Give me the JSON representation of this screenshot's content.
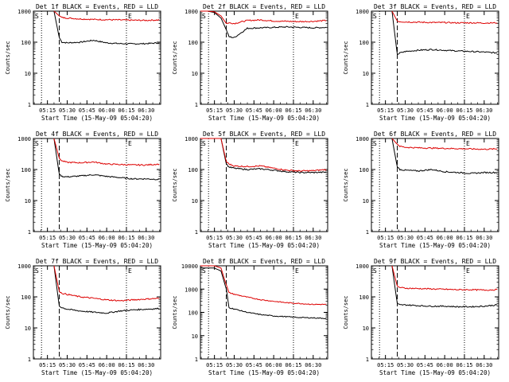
{
  "colors": {
    "events": "#000000",
    "lld": "#dd0000",
    "background": "#ffffff",
    "axes": "#000000"
  },
  "figure": {
    "ylabel": "Counts/sec",
    "xlabel": "Start Time (15-May-09 05:04:20)",
    "title_suffix": "BLACK = Events, RED = LLD",
    "y_scale": "log",
    "y_range": [
      1,
      1000
    ],
    "y_ticks": [
      {
        "value": 1,
        "label": "1"
      },
      {
        "value": 10,
        "label": "10"
      },
      {
        "value": 100,
        "label": "100"
      },
      {
        "value": 1000,
        "label": "1000"
      }
    ],
    "x_range": [
      "05:04:20",
      "06:41:00"
    ],
    "x_ticks": [
      "05:15",
      "05:30",
      "05:45",
      "06:00",
      "06:15",
      "06:30"
    ],
    "markers": {
      "start": "05:10:30",
      "dashed": "05:24:00",
      "end": "06:15:00"
    },
    "corner_labels": {
      "left": "S",
      "right": "E"
    }
  },
  "chart_data": [
    {
      "type": "line",
      "title": "Det 1f BLACK = Events, RED = LLD",
      "ylim": [
        1,
        1000
      ],
      "series": [
        {
          "name": "Events",
          "color": "#000000",
          "x": [
            "05:20",
            "05:24",
            "05:26",
            "05:30",
            "05:40",
            "05:50",
            "06:00",
            "06:10",
            "06:20",
            "06:30",
            "06:40"
          ],
          "values": [
            1000,
            140,
            100,
            95,
            100,
            115,
            95,
            90,
            88,
            90,
            95
          ]
        },
        {
          "name": "LLD",
          "color": "#dd0000",
          "x": [
            "05:20",
            "05:24",
            "05:26",
            "05:30",
            "05:40",
            "05:50",
            "06:00",
            "06:10",
            "06:20",
            "06:30",
            "06:40"
          ],
          "values": [
            1000,
            700,
            620,
            600,
            560,
            540,
            530,
            520,
            510,
            505,
            520
          ]
        }
      ]
    },
    {
      "type": "line",
      "title": "Det 2f BLACK = Events, RED = LLD",
      "ylim": [
        1,
        1000
      ],
      "series": [
        {
          "name": "Events",
          "color": "#000000",
          "x": [
            "05:04:20",
            "05:10",
            "05:15",
            "05:20",
            "05:24",
            "05:26",
            "05:30",
            "05:40",
            "05:50",
            "06:00",
            "06:10",
            "06:20",
            "06:30",
            "06:40"
          ],
          "values": [
            1000,
            1000,
            900,
            600,
            250,
            150,
            140,
            280,
            290,
            300,
            310,
            300,
            290,
            300
          ]
        },
        {
          "name": "LLD",
          "color": "#dd0000",
          "x": [
            "05:04:20",
            "05:10",
            "05:15",
            "05:20",
            "05:24",
            "05:26",
            "05:30",
            "05:40",
            "05:50",
            "06:00",
            "06:10",
            "06:20",
            "06:30",
            "06:40"
          ],
          "values": [
            1000,
            1000,
            950,
            700,
            400,
            420,
            400,
            500,
            520,
            480,
            470,
            460,
            470,
            500
          ]
        }
      ]
    },
    {
      "type": "line",
      "title": "Det 3f BLACK = Events, RED = LLD",
      "ylim": [
        1,
        1000
      ],
      "series": [
        {
          "name": "Events",
          "color": "#000000",
          "x": [
            "05:20",
            "05:24",
            "05:26",
            "05:30",
            "05:40",
            "05:50",
            "06:00",
            "06:10",
            "06:20",
            "06:30",
            "06:40"
          ],
          "values": [
            1000,
            40,
            45,
            50,
            55,
            58,
            55,
            52,
            50,
            48,
            45
          ]
        },
        {
          "name": "LLD",
          "color": "#dd0000",
          "x": [
            "05:20",
            "05:24",
            "05:26",
            "05:30",
            "05:40",
            "05:50",
            "06:00",
            "06:10",
            "06:20",
            "06:30",
            "06:40"
          ],
          "values": [
            1000,
            480,
            460,
            450,
            440,
            430,
            430,
            420,
            420,
            415,
            420
          ]
        }
      ]
    },
    {
      "type": "line",
      "title": "Det 4f BLACK = Events, RED = LLD",
      "ylim": [
        1,
        1000
      ],
      "series": [
        {
          "name": "Events",
          "color": "#000000",
          "x": [
            "05:20",
            "05:24",
            "05:26",
            "05:30",
            "05:40",
            "05:50",
            "06:00",
            "06:10",
            "06:20",
            "06:30",
            "06:40"
          ],
          "values": [
            1000,
            70,
            60,
            58,
            62,
            68,
            60,
            55,
            50,
            50,
            48
          ]
        },
        {
          "name": "LLD",
          "color": "#dd0000",
          "x": [
            "05:20",
            "05:24",
            "05:26",
            "05:30",
            "05:40",
            "05:50",
            "06:00",
            "06:10",
            "06:20",
            "06:30",
            "06:40"
          ],
          "values": [
            1000,
            230,
            190,
            170,
            165,
            175,
            150,
            145,
            140,
            140,
            150
          ]
        }
      ]
    },
    {
      "type": "line",
      "title": "Det 5f BLACK = Events, RED = LLD",
      "ylim": [
        1,
        1000
      ],
      "series": [
        {
          "name": "Events",
          "color": "#000000",
          "x": [
            "05:04:20",
            "05:15",
            "05:20",
            "05:24",
            "05:26",
            "05:30",
            "05:40",
            "05:50",
            "06:00",
            "06:10",
            "06:20",
            "06:30",
            "06:40"
          ],
          "values": [
            1000,
            1000,
            1000,
            150,
            120,
            110,
            100,
            105,
            95,
            85,
            80,
            80,
            82
          ]
        },
        {
          "name": "LLD",
          "color": "#dd0000",
          "x": [
            "05:04:20",
            "05:15",
            "05:20",
            "05:24",
            "05:26",
            "05:30",
            "05:40",
            "05:50",
            "06:00",
            "06:10",
            "06:20",
            "06:30",
            "06:40"
          ],
          "values": [
            1000,
            1000,
            1000,
            180,
            150,
            130,
            125,
            130,
            110,
            95,
            90,
            92,
            100
          ]
        }
      ]
    },
    {
      "type": "line",
      "title": "Det 6f BLACK = Events, RED = LLD",
      "ylim": [
        1,
        1000
      ],
      "series": [
        {
          "name": "Events",
          "color": "#000000",
          "x": [
            "05:20",
            "05:24",
            "05:26",
            "05:30",
            "05:40",
            "05:50",
            "06:00",
            "06:10",
            "06:20",
            "06:30",
            "06:40"
          ],
          "values": [
            1000,
            120,
            100,
            95,
            90,
            100,
            85,
            80,
            75,
            80,
            80
          ]
        },
        {
          "name": "LLD",
          "color": "#dd0000",
          "x": [
            "05:20",
            "05:24",
            "05:26",
            "05:30",
            "05:40",
            "05:50",
            "06:00",
            "06:10",
            "06:20",
            "06:30",
            "06:40"
          ],
          "values": [
            1000,
            650,
            560,
            520,
            500,
            490,
            480,
            470,
            460,
            450,
            460
          ]
        }
      ]
    },
    {
      "type": "line",
      "title": "Det 7f BLACK = Events, RED = LLD",
      "ylim": [
        1,
        1000
      ],
      "series": [
        {
          "name": "Events",
          "color": "#000000",
          "x": [
            "05:20",
            "05:24",
            "05:26",
            "05:30",
            "05:40",
            "05:50",
            "06:00",
            "06:10",
            "06:20",
            "06:30",
            "06:40"
          ],
          "values": [
            1000,
            50,
            45,
            40,
            35,
            32,
            30,
            35,
            38,
            40,
            42
          ]
        },
        {
          "name": "LLD",
          "color": "#dd0000",
          "x": [
            "05:20",
            "05:24",
            "05:26",
            "05:30",
            "05:40",
            "05:50",
            "06:00",
            "06:10",
            "06:20",
            "06:30",
            "06:40"
          ],
          "values": [
            1000,
            150,
            130,
            120,
            100,
            90,
            80,
            75,
            80,
            85,
            90
          ]
        }
      ]
    },
    {
      "type": "line",
      "title": "Det 8f BLACK = Events, RED = LLD",
      "ylim": [
        1,
        10000
      ],
      "series": [
        {
          "name": "Events",
          "color": "#000000",
          "x": [
            "05:04:20",
            "05:10",
            "05:15",
            "05:20",
            "05:24",
            "05:26",
            "05:30",
            "05:40",
            "05:50",
            "06:00",
            "06:10",
            "06:20",
            "06:30",
            "06:40"
          ],
          "values": [
            8000,
            8000,
            8000,
            6000,
            1000,
            160,
            140,
            100,
            80,
            70,
            65,
            60,
            58,
            55
          ]
        },
        {
          "name": "LLD",
          "color": "#dd0000",
          "x": [
            "05:04:20",
            "05:10",
            "05:15",
            "05:20",
            "05:24",
            "05:26",
            "05:30",
            "05:40",
            "05:50",
            "06:00",
            "06:10",
            "06:20",
            "06:30",
            "06:40"
          ],
          "values": [
            10000,
            10000,
            10000,
            8000,
            1500,
            700,
            600,
            450,
            350,
            300,
            260,
            240,
            220,
            220
          ]
        }
      ]
    },
    {
      "type": "line",
      "title": "Det 9f BLACK = Events, RED = LLD",
      "ylim": [
        1,
        1000
      ],
      "series": [
        {
          "name": "Events",
          "color": "#000000",
          "x": [
            "05:20",
            "05:24",
            "05:26",
            "05:30",
            "05:40",
            "05:50",
            "06:00",
            "06:10",
            "06:20",
            "06:30",
            "06:40"
          ],
          "values": [
            1000,
            60,
            55,
            55,
            52,
            50,
            50,
            48,
            48,
            50,
            55
          ]
        },
        {
          "name": "LLD",
          "color": "#dd0000",
          "x": [
            "05:20",
            "05:24",
            "05:26",
            "05:30",
            "05:40",
            "05:50",
            "06:00",
            "06:10",
            "06:20",
            "06:30",
            "06:40"
          ],
          "values": [
            1000,
            220,
            200,
            190,
            185,
            180,
            175,
            170,
            170,
            165,
            170
          ]
        }
      ]
    }
  ]
}
